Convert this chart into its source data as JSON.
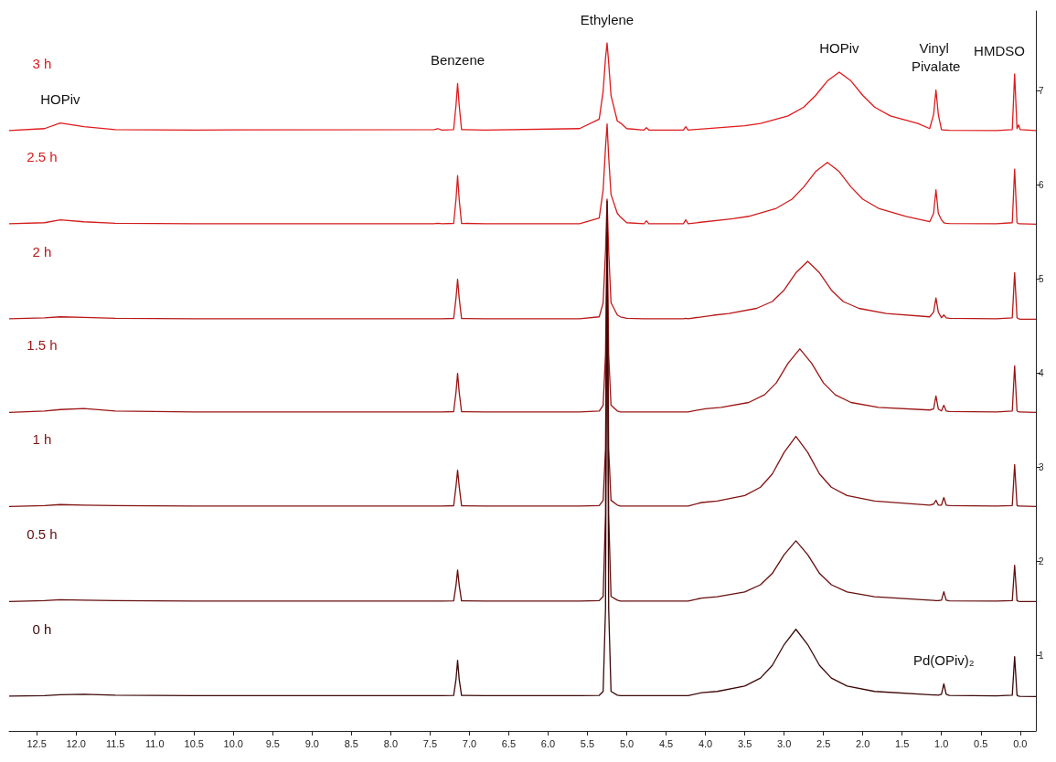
{
  "chart_data": {
    "type": "line",
    "xlim": [
      12.85,
      -0.2
    ],
    "xticks": [
      {
        "value": 12.5,
        "label": "12.5"
      },
      {
        "value": 12,
        "label": "12.0"
      },
      {
        "value": 11.5,
        "label": "11.5"
      },
      {
        "value": 11,
        "label": "11.0"
      },
      {
        "value": 10.5,
        "label": "10.5"
      },
      {
        "value": 10,
        "label": "10.0"
      },
      {
        "value": 9.5,
        "label": "9.5"
      },
      {
        "value": 9,
        "label": "9.0"
      },
      {
        "value": 8.5,
        "label": "8.5"
      },
      {
        "value": 8,
        "label": "8.0"
      },
      {
        "value": 7.5,
        "label": "7.5"
      },
      {
        "value": 7,
        "label": "7.0"
      },
      {
        "value": 6.5,
        "label": "6.5"
      },
      {
        "value": 6,
        "label": "6.0"
      },
      {
        "value": 5.5,
        "label": "5.5"
      },
      {
        "value": 5,
        "label": "5.0"
      },
      {
        "value": 4.5,
        "label": "4.5"
      },
      {
        "value": 4,
        "label": "4.0"
      },
      {
        "value": 3.5,
        "label": "3.5"
      },
      {
        "value": 3,
        "label": "3.0"
      },
      {
        "value": 2.5,
        "label": "2.5"
      },
      {
        "value": 2,
        "label": "2.0"
      },
      {
        "value": 1.5,
        "label": "1.5"
      },
      {
        "value": 1,
        "label": "1.0"
      },
      {
        "value": 0.5,
        "label": "0.5"
      },
      {
        "value": 0,
        "label": "0.0"
      }
    ],
    "ylim": [
      0.2,
      7.85
    ],
    "yticks": [
      1,
      2,
      3,
      4,
      5,
      6,
      7
    ],
    "annotations": [
      {
        "text": "HOPiv",
        "x": 12.2,
        "y": 6.66
      },
      {
        "text": "Benzene",
        "x": 7.15,
        "y": 7.08
      },
      {
        "text": "Ethylene",
        "x": 5.25,
        "y": 7.51
      },
      {
        "text": "HOPiv",
        "x": 2.3,
        "y": 7.2
      },
      {
        "text": "Vinyl Pivalate",
        "x": 1.07,
        "y": 7.01
      },
      {
        "text": "HMDSO",
        "x": 0.07,
        "y": 7.18
      },
      {
        "text": "Pd(OPiv)₂",
        "x": 0.97,
        "y": 0.7
      }
    ],
    "series": [
      {
        "name": "3 h",
        "color": "#e0191c",
        "x": [
          12.85,
          12.4,
          12.2,
          11.9,
          11.5,
          10.5,
          7.45,
          7.4,
          7.35,
          7.2,
          7.17,
          7.15,
          7.13,
          7.1,
          6.8,
          5.6,
          5.35,
          5.3,
          5.27,
          5.25,
          5.23,
          5.2,
          5.12,
          5.08,
          5.0,
          4.78,
          4.75,
          4.72,
          4.28,
          4.25,
          4.22,
          3.5,
          3.3,
          2.95,
          2.75,
          2.6,
          2.45,
          2.3,
          2.15,
          2.0,
          1.85,
          1.65,
          1.3,
          1.15,
          1.1,
          1.07,
          1.04,
          1.0,
          0.97,
          0.94,
          0.9,
          0.3,
          0.1,
          0.07,
          0.04,
          0.02,
          0.0,
          -0.2
        ],
        "values": [
          6.58,
          6.6,
          6.66,
          6.62,
          6.59,
          6.585,
          6.59,
          6.6,
          6.585,
          6.59,
          6.85,
          7.08,
          6.85,
          6.59,
          6.585,
          6.6,
          6.7,
          7.0,
          7.35,
          7.51,
          7.3,
          6.95,
          6.68,
          6.66,
          6.6,
          6.585,
          6.61,
          6.585,
          6.585,
          6.62,
          6.585,
          6.63,
          6.654,
          6.735,
          6.828,
          6.952,
          7.107,
          7.2,
          7.107,
          6.952,
          6.828,
          6.735,
          6.654,
          6.6,
          6.75,
          7.01,
          6.75,
          6.59,
          6.585,
          6.585,
          6.582,
          6.58,
          6.59,
          7.18,
          6.6,
          6.64,
          6.59,
          6.58
        ]
      },
      {
        "name": "2.5 h",
        "color": "#d41c1c",
        "x": [
          12.85,
          12.4,
          12.2,
          11.9,
          11.5,
          10.5,
          7.45,
          7.4,
          7.35,
          7.2,
          7.17,
          7.15,
          7.13,
          7.1,
          6.8,
          5.6,
          5.35,
          5.3,
          5.27,
          5.25,
          5.23,
          5.2,
          5.12,
          5.08,
          5.0,
          4.78,
          4.75,
          4.72,
          4.28,
          4.25,
          4.22,
          3.65,
          3.45,
          3.1,
          2.9,
          2.75,
          2.6,
          2.45,
          2.3,
          2.15,
          2.0,
          1.8,
          1.45,
          1.15,
          1.1,
          1.07,
          1.04,
          1.0,
          0.97,
          0.94,
          0.9,
          0.3,
          0.1,
          0.07,
          0.04,
          0.02,
          0.0,
          -0.2
        ],
        "values": [
          5.59,
          5.6,
          5.63,
          5.61,
          5.595,
          5.59,
          5.59,
          5.595,
          5.59,
          5.593,
          5.85,
          6.1,
          5.85,
          5.593,
          5.59,
          5.59,
          5.65,
          5.95,
          6.4,
          6.65,
          6.3,
          5.9,
          5.7,
          5.66,
          5.6,
          5.59,
          5.62,
          5.59,
          5.59,
          5.63,
          5.59,
          5.642,
          5.668,
          5.753,
          5.85,
          5.98,
          6.143,
          6.24,
          6.143,
          5.98,
          5.85,
          5.753,
          5.668,
          5.61,
          5.7,
          5.95,
          5.7,
          5.63,
          5.6,
          5.595,
          5.592,
          5.59,
          5.6,
          6.17,
          5.6,
          5.59,
          5.59,
          5.585
        ]
      },
      {
        "name": "2 h",
        "color": "#b81818",
        "x": [
          12.85,
          12.4,
          12.2,
          11.9,
          11.5,
          10.5,
          7.45,
          7.4,
          7.35,
          7.2,
          7.17,
          7.15,
          7.13,
          7.1,
          6.8,
          5.6,
          5.35,
          5.3,
          5.27,
          5.25,
          5.23,
          5.2,
          5.12,
          5.08,
          5.0,
          4.78,
          4.75,
          4.72,
          4.28,
          4.25,
          4.22,
          3.9,
          3.7,
          3.35,
          3.15,
          3.0,
          2.85,
          2.7,
          2.55,
          2.4,
          2.25,
          2.05,
          1.7,
          1.15,
          1.1,
          1.07,
          1.04,
          1.0,
          0.97,
          0.94,
          0.9,
          0.3,
          0.1,
          0.07,
          0.04,
          0.02,
          0.0,
          -0.2
        ],
        "values": [
          4.58,
          4.59,
          4.6,
          4.595,
          4.585,
          4.58,
          4.58,
          4.58,
          4.58,
          4.583,
          4.8,
          5.0,
          4.8,
          4.583,
          4.58,
          4.58,
          4.6,
          4.75,
          5.3,
          5.85,
          5.3,
          4.75,
          4.62,
          4.6,
          4.585,
          4.58,
          4.58,
          4.58,
          4.58,
          4.585,
          4.58,
          4.617,
          4.635,
          4.69,
          4.763,
          4.885,
          5.068,
          5.19,
          5.068,
          4.885,
          4.763,
          4.69,
          4.635,
          4.6,
          4.65,
          4.8,
          4.65,
          4.59,
          4.62,
          4.59,
          4.585,
          4.58,
          4.59,
          5.07,
          4.59,
          4.58,
          4.575,
          4.575
        ]
      },
      {
        "name": "1.5 h",
        "color": "#9c1515",
        "x": [
          12.85,
          12.4,
          12.2,
          11.9,
          11.5,
          10.5,
          7.45,
          7.4,
          7.35,
          7.2,
          7.17,
          7.15,
          7.13,
          7.1,
          6.8,
          5.6,
          5.35,
          5.3,
          5.27,
          5.25,
          5.23,
          5.2,
          5.12,
          5.08,
          5.0,
          4.78,
          4.75,
          4.72,
          4.28,
          4.25,
          4.22,
          4.0,
          3.8,
          3.45,
          3.25,
          3.1,
          2.95,
          2.8,
          2.65,
          2.5,
          2.35,
          2.15,
          1.8,
          1.15,
          1.1,
          1.07,
          1.04,
          1.0,
          0.97,
          0.94,
          0.9,
          0.3,
          0.1,
          0.07,
          0.04,
          0.02,
          0.0,
          -0.2
        ],
        "values": [
          3.585,
          3.6,
          3.615,
          3.625,
          3.6,
          3.59,
          3.59,
          3.59,
          3.59,
          3.593,
          3.8,
          4.0,
          3.8,
          3.593,
          3.59,
          3.59,
          3.6,
          3.66,
          4.2,
          5.6,
          4.2,
          3.66,
          3.6,
          3.59,
          3.59,
          3.59,
          3.59,
          3.59,
          3.59,
          3.59,
          3.59,
          3.624,
          3.637,
          3.69,
          3.771,
          3.898,
          4.106,
          4.26,
          4.106,
          3.898,
          3.771,
          3.69,
          3.637,
          3.61,
          3.62,
          3.76,
          3.62,
          3.6,
          3.66,
          3.6,
          3.595,
          3.59,
          3.6,
          4.08,
          3.6,
          3.59,
          3.59,
          3.585
        ]
      },
      {
        "name": "1 h",
        "color": "#821212",
        "x": [
          12.85,
          12.4,
          12.2,
          11.9,
          11.5,
          10.5,
          7.45,
          7.4,
          7.35,
          7.2,
          7.17,
          7.15,
          7.13,
          7.1,
          6.8,
          5.6,
          5.35,
          5.3,
          5.27,
          5.25,
          5.23,
          5.2,
          5.12,
          5.08,
          5.0,
          4.78,
          4.75,
          4.72,
          4.28,
          4.25,
          4.22,
          4.05,
          3.85,
          3.5,
          3.3,
          3.15,
          3.0,
          2.85,
          2.7,
          2.55,
          2.4,
          2.2,
          1.85,
          1.15,
          1.1,
          1.07,
          1.04,
          1.0,
          0.97,
          0.94,
          0.9,
          0.3,
          0.1,
          0.07,
          0.04,
          0.02,
          0.0,
          -0.2
        ],
        "values": [
          2.585,
          2.595,
          2.605,
          2.6,
          2.595,
          2.59,
          2.59,
          2.59,
          2.59,
          2.593,
          2.8,
          2.97,
          2.8,
          2.593,
          2.59,
          2.59,
          2.595,
          2.65,
          3.2,
          5.5,
          3.2,
          2.65,
          2.6,
          2.59,
          2.59,
          2.59,
          2.59,
          2.59,
          2.59,
          2.59,
          2.59,
          2.627,
          2.642,
          2.701,
          2.79,
          2.93,
          3.16,
          3.33,
          3.16,
          2.93,
          2.79,
          2.701,
          2.642,
          2.6,
          2.61,
          2.65,
          2.6,
          2.6,
          2.68,
          2.6,
          2.595,
          2.59,
          2.595,
          3.03,
          2.595,
          2.59,
          2.59,
          2.585
        ]
      },
      {
        "name": "0.5 h",
        "color": "#650d0d",
        "x": [
          12.85,
          12.4,
          12.2,
          11.9,
          11.5,
          10.5,
          7.45,
          7.4,
          7.35,
          7.2,
          7.17,
          7.15,
          7.13,
          7.1,
          6.8,
          5.6,
          5.35,
          5.3,
          5.27,
          5.25,
          5.23,
          5.2,
          5.12,
          5.08,
          5.0,
          4.78,
          4.75,
          4.72,
          4.28,
          4.25,
          4.22,
          4.05,
          3.85,
          3.5,
          3.3,
          3.15,
          3.0,
          2.85,
          2.7,
          2.55,
          2.4,
          2.2,
          1.85,
          1.15,
          1.1,
          1.07,
          1.04,
          1.0,
          0.97,
          0.94,
          0.9,
          0.3,
          0.1,
          0.07,
          0.04,
          0.02,
          0.0,
          -0.2
        ],
        "values": [
          1.575,
          1.585,
          1.595,
          1.59,
          1.585,
          1.58,
          1.58,
          1.58,
          1.58,
          1.583,
          1.75,
          1.91,
          1.75,
          1.583,
          1.58,
          1.58,
          1.585,
          1.63,
          2.5,
          5.4,
          2.5,
          1.63,
          1.59,
          1.58,
          1.58,
          1.58,
          1.58,
          1.58,
          1.58,
          1.58,
          1.58,
          1.612,
          1.625,
          1.676,
          1.753,
          1.874,
          2.073,
          2.22,
          2.073,
          1.874,
          1.753,
          1.676,
          1.625,
          1.59,
          1.588,
          1.585,
          1.585,
          1.59,
          1.68,
          1.59,
          1.583,
          1.58,
          1.585,
          1.96,
          1.585,
          1.578,
          1.575,
          1.575
        ]
      },
      {
        "name": "0 h",
        "color": "#3d0808",
        "x": [
          12.85,
          12.4,
          12.2,
          11.9,
          11.5,
          10.5,
          7.45,
          7.4,
          7.35,
          7.2,
          7.17,
          7.15,
          7.13,
          7.1,
          6.8,
          5.6,
          5.35,
          5.3,
          5.27,
          5.25,
          5.23,
          5.2,
          5.12,
          5.08,
          5.0,
          4.78,
          4.75,
          4.72,
          4.28,
          4.25,
          4.22,
          4.05,
          3.85,
          3.5,
          3.3,
          3.15,
          3.0,
          2.85,
          2.7,
          2.55,
          2.4,
          2.2,
          1.85,
          1.15,
          1.1,
          1.07,
          1.04,
          1.0,
          0.97,
          0.94,
          0.9,
          0.3,
          0.1,
          0.07,
          0.04,
          0.02,
          0.0,
          -0.2
        ],
        "values": [
          0.57,
          0.575,
          0.585,
          0.59,
          0.58,
          0.575,
          0.575,
          0.575,
          0.575,
          0.578,
          0.75,
          0.95,
          0.75,
          0.578,
          0.575,
          0.575,
          0.578,
          0.62,
          1.5,
          5.83,
          1.5,
          0.62,
          0.58,
          0.575,
          0.575,
          0.575,
          0.575,
          0.575,
          0.575,
          0.575,
          0.575,
          0.606,
          0.62,
          0.677,
          0.762,
          0.897,
          1.117,
          1.28,
          1.117,
          0.897,
          0.762,
          0.677,
          0.62,
          0.585,
          0.583,
          0.582,
          0.58,
          0.59,
          0.7,
          0.59,
          0.578,
          0.572,
          0.58,
          0.99,
          0.58,
          0.57,
          0.568,
          0.565
        ]
      }
    ]
  }
}
